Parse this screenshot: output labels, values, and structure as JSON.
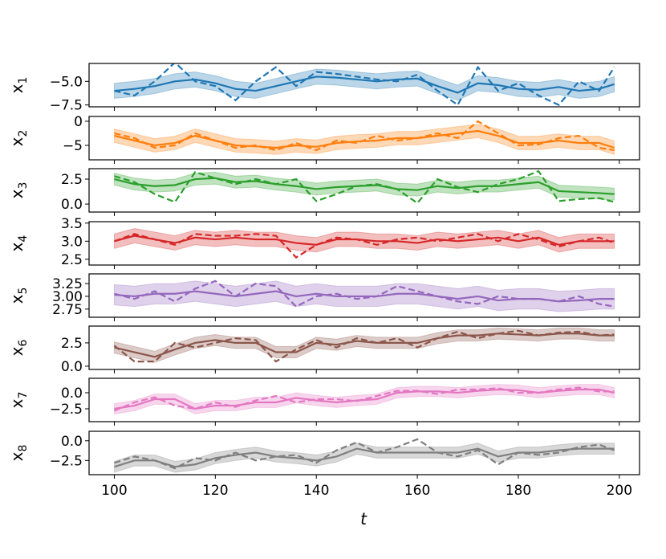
{
  "chart_data": {
    "type": "line",
    "xlabel": "t",
    "xlim": [
      95,
      204
    ],
    "xticks": [
      100,
      120,
      140,
      160,
      180,
      200
    ],
    "t": [
      100,
      104,
      108,
      112,
      116,
      120,
      124,
      128,
      132,
      136,
      140,
      144,
      148,
      152,
      156,
      160,
      164,
      168,
      172,
      176,
      180,
      184,
      188,
      192,
      196,
      199
    ],
    "legend": "none",
    "grid": false,
    "subplots": [
      {
        "ylabel": "x",
        "ylabel_sub": "1",
        "color": "#1f77b4",
        "ylim": [
          -7.7,
          -3.1
        ],
        "yticks": [
          -5.0,
          -7.5
        ],
        "ytick_labels": [
          "−5.0",
          "−7.5"
        ],
        "band": 0.8,
        "mean": [
          -6,
          -5.8,
          -5.5,
          -5,
          -4.8,
          -5.2,
          -5.8,
          -6,
          -5.5,
          -5,
          -4.5,
          -4.6,
          -4.8,
          -5,
          -4.8,
          -4.7,
          -5.5,
          -6.2,
          -5.2,
          -5.4,
          -5.8,
          -5.9,
          -5.6,
          -6.0,
          -5.8,
          -5.3
        ],
        "true": [
          -6,
          -6.5,
          -5,
          -3,
          -5,
          -5.5,
          -7,
          -5,
          -3.5,
          -5.5,
          -4,
          -4.2,
          -4.5,
          -4.8,
          -5,
          -4.3,
          -6,
          -7.5,
          -3.5,
          -6,
          -5.2,
          -6.5,
          -7.5,
          -5,
          -6,
          -3.5
        ]
      },
      {
        "ylabel": "x",
        "ylabel_sub": "2",
        "color": "#ff7f0e",
        "ylim": [
          -8.0,
          1.0
        ],
        "yticks": [
          0,
          -5
        ],
        "ytick_labels": [
          "0",
          "−5"
        ],
        "band": 1.4,
        "mean": [
          -3,
          -4,
          -5,
          -4.5,
          -3,
          -4,
          -5,
          -5.2,
          -5.5,
          -5,
          -5.3,
          -4.5,
          -4.2,
          -4,
          -3.5,
          -3.5,
          -3,
          -2.5,
          -2,
          -3,
          -4.5,
          -4.5,
          -4,
          -4.5,
          -4.5,
          -5.5
        ],
        "true": [
          -2.5,
          -3.5,
          -5.5,
          -5,
          -2.5,
          -4,
          -5.5,
          -5,
          -6,
          -4.5,
          -6,
          -4,
          -4.5,
          -3,
          -4,
          -3.5,
          -2.5,
          -3.5,
          0,
          -2.5,
          -5,
          -4.8,
          -3.5,
          -3,
          -5.5,
          -6
        ]
      },
      {
        "ylabel": "x",
        "ylabel_sub": "3",
        "color": "#2ca02c",
        "ylim": [
          -0.8,
          3.55
        ],
        "yticks": [
          2.5,
          0.0
        ],
        "ytick_labels": [
          "2.5",
          "0.0"
        ],
        "band": 0.6,
        "mean": [
          2.5,
          2.0,
          1.8,
          1.9,
          2.5,
          2.6,
          2.2,
          2.3,
          2.0,
          1.8,
          1.5,
          1.7,
          1.8,
          1.9,
          1.5,
          1.4,
          1.8,
          1.6,
          1.8,
          1.8,
          2.0,
          2.2,
          1.3,
          1.2,
          1.1,
          1.0
        ],
        "true": [
          2.8,
          2.2,
          1.0,
          0.2,
          3.2,
          2.6,
          2.0,
          2.5,
          2.0,
          2.5,
          0.3,
          1.0,
          1.8,
          2.0,
          1.5,
          0.1,
          2.5,
          1.7,
          1.2,
          2.0,
          2.5,
          3.3,
          0.3,
          0.5,
          0.6,
          0.2
        ]
      },
      {
        "ylabel": "x",
        "ylabel_sub": "4",
        "color": "#d62728",
        "ylim": [
          2.34,
          3.54
        ],
        "yticks": [
          3.5,
          3.0,
          2.5
        ],
        "ytick_labels": [
          "3.5",
          "3.0",
          "2.5"
        ],
        "band": 0.2,
        "mean": [
          3.0,
          3.15,
          3.05,
          2.95,
          3.1,
          3.05,
          3.1,
          3.05,
          3.05,
          2.95,
          2.9,
          3.05,
          3.05,
          3.0,
          3.0,
          2.95,
          3.05,
          3.0,
          3.05,
          3.1,
          3.0,
          3.1,
          2.9,
          3.0,
          3.0,
          3.0
        ],
        "true": [
          3.0,
          3.2,
          3.05,
          2.9,
          3.2,
          3.15,
          3.15,
          3.2,
          3.15,
          2.55,
          2.9,
          3.1,
          3.05,
          2.9,
          3.05,
          3.1,
          3.0,
          3.1,
          3.2,
          3.0,
          3.2,
          3.05,
          2.85,
          3.0,
          3.1,
          2.95
        ]
      },
      {
        "ylabel": "x",
        "ylabel_sub": "5",
        "color": "#9467bd",
        "ylim": [
          2.59,
          3.44
        ],
        "yticks": [
          3.25,
          3.0,
          2.75
        ],
        "ytick_labels": [
          "3.25",
          "3.00",
          "2.75"
        ],
        "band": 0.2,
        "mean": [
          3.03,
          3.0,
          3.05,
          3.05,
          3.1,
          3.05,
          3.0,
          3.05,
          3.1,
          3.0,
          3.05,
          3.0,
          3.0,
          3.0,
          3.05,
          3.05,
          3.0,
          2.95,
          3.0,
          2.92,
          2.95,
          2.95,
          2.9,
          2.92,
          2.95,
          2.95
        ],
        "true": [
          3.05,
          2.95,
          3.1,
          2.9,
          3.15,
          3.3,
          3.0,
          3.25,
          3.2,
          2.8,
          3.0,
          3.05,
          2.95,
          3.0,
          3.2,
          3.1,
          3.0,
          2.9,
          2.85,
          3.0,
          2.95,
          2.95,
          2.9,
          3.0,
          2.85,
          2.8
        ]
      },
      {
        "ylabel": "x",
        "ylabel_sub": "6",
        "color": "#8c564b",
        "ylim": [
          -0.35,
          4.3
        ],
        "yticks": [
          2.5,
          0.0
        ],
        "ytick_labels": [
          "2.5",
          "0.0"
        ],
        "band": 0.6,
        "mean": [
          2.0,
          1.5,
          1.0,
          1.8,
          2.5,
          2.8,
          2.5,
          2.5,
          1.5,
          1.5,
          2.5,
          2.3,
          2.7,
          2.5,
          2.5,
          2.5,
          3.0,
          3.3,
          3.3,
          3.5,
          3.4,
          3.3,
          3.5,
          3.5,
          3.3,
          3.3
        ],
        "true": [
          2.2,
          0.5,
          0.5,
          2.5,
          2.0,
          2.5,
          3.0,
          2.8,
          0.5,
          1.8,
          2.8,
          2.0,
          3.0,
          2.5,
          3.0,
          2.0,
          3.0,
          3.7,
          3.0,
          3.5,
          3.8,
          3.3,
          3.6,
          3.7,
          3.3,
          3.4
        ]
      },
      {
        "ylabel": "x",
        "ylabel_sub": "7",
        "color": "#e377c2",
        "ylim": [
          -4.5,
          2.25
        ],
        "yticks": [
          0.0,
          -2.5
        ],
        "ytick_labels": [
          "0.0",
          "−2.5"
        ],
        "band": 0.8,
        "mean": [
          -2.5,
          -2,
          -1,
          -1,
          -2.5,
          -2,
          -2,
          -1.5,
          -1.5,
          -0.8,
          -1.2,
          -1.5,
          -1.2,
          -1,
          0,
          0.2,
          0.2,
          0,
          0.3,
          0.5,
          0.4,
          0,
          0.3,
          0.5,
          0.5,
          0
        ],
        "true": [
          -2.8,
          -1.5,
          -0.7,
          -2.0,
          -2.5,
          -1.5,
          -2.2,
          -1.2,
          -0.5,
          -1.5,
          -1.0,
          -1.0,
          -1.3,
          -0.5,
          0.3,
          0.3,
          -0.2,
          0.5,
          0.5,
          0.7,
          0.0,
          0.0,
          0.5,
          0.8,
          0.2,
          0.2
        ]
      },
      {
        "ylabel": "x",
        "ylabel_sub": "8",
        "color": "#7f7f7f",
        "ylim": [
          -4.3,
          1.2
        ],
        "yticks": [
          0.0,
          -2.5
        ],
        "ytick_labels": [
          "0.0",
          "−2.5"
        ],
        "band": 0.7,
        "mean": [
          -3.3,
          -2.5,
          -2.5,
          -3.3,
          -3.0,
          -2.2,
          -1.8,
          -1.5,
          -2.0,
          -2.2,
          -2.5,
          -2.0,
          -1.0,
          -1.5,
          -1.5,
          -1.5,
          -1.5,
          -1.5,
          -1.0,
          -2.0,
          -1.5,
          -1.5,
          -1.2,
          -1.0,
          -1.0,
          -1.0
        ],
        "true": [
          -2.8,
          -2.0,
          -2.5,
          -3.5,
          -2.2,
          -2.5,
          -1.5,
          -2.5,
          -2.0,
          -1.8,
          -2.8,
          -1.2,
          -0.2,
          -1.5,
          -0.8,
          0.2,
          -1.5,
          -2.0,
          -1.2,
          -3.0,
          -1.5,
          -1.8,
          -1.5,
          -0.8,
          -0.5,
          -1.2
        ]
      }
    ]
  }
}
